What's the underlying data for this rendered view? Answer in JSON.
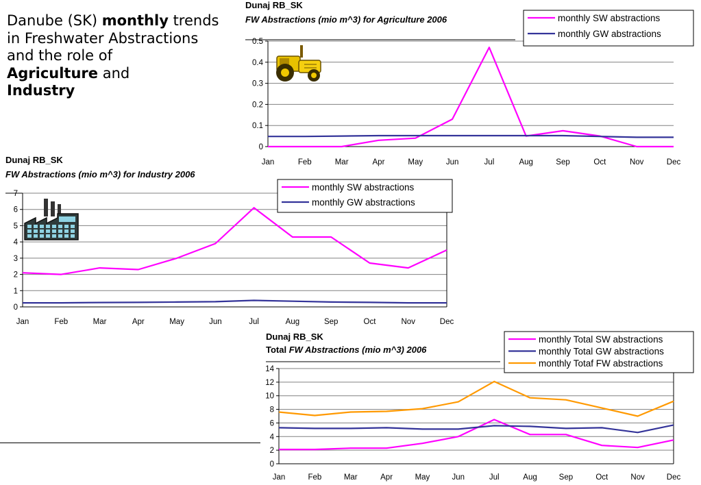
{
  "slide": {
    "title_parts": [
      {
        "text": "Danube (SK) ",
        "bold": false
      },
      {
        "text": "monthly",
        "bold": true
      },
      {
        "text": " trends in Freshwater Abstractions",
        "bold": false
      },
      {
        "br": true
      },
      {
        "text": "and the role of ",
        "bold": false
      },
      {
        "br": true
      },
      {
        "text": "Agriculture",
        "bold": true
      },
      {
        "text": " and ",
        "bold": false
      },
      {
        "br": true
      },
      {
        "text": "Industry",
        "bold": true
      }
    ]
  },
  "colors": {
    "sw": "#ff00ff",
    "gw": "#333399",
    "total": "#ff9900",
    "grid": "#808080",
    "axis": "#000000"
  },
  "chart_data": [
    {
      "id": "agriculture",
      "type": "line",
      "title": "Dunaj RB_SK",
      "subtitle": "FW Abstractions (mio m^3) for Agriculture 2006",
      "icon": "tractor-icon",
      "categories": [
        "Jan",
        "Feb",
        "Mar",
        "Apr",
        "May",
        "Jun",
        "Jul",
        "Aug",
        "Sep",
        "Oct",
        "Nov",
        "Dec"
      ],
      "ylim": [
        0,
        0.5
      ],
      "yticks": [
        "0",
        "0.1",
        "0.2",
        "0.3",
        "0.4",
        "0.5"
      ],
      "grid": true,
      "legend_position": "top-right",
      "series": [
        {
          "name": "monthly SW abstractions",
          "color": "#ff00ff",
          "values": [
            0,
            0,
            0,
            0.03,
            0.04,
            0.13,
            0.47,
            0.05,
            0.075,
            0.05,
            0,
            0
          ]
        },
        {
          "name": "monthly GW abstractions",
          "color": "#333399",
          "values": [
            0.048,
            0.048,
            0.05,
            0.052,
            0.052,
            0.052,
            0.052,
            0.052,
            0.052,
            0.048,
            0.044,
            0.044
          ]
        }
      ]
    },
    {
      "id": "industry",
      "type": "line",
      "title": "Dunaj RB_SK",
      "subtitle": "FW Abstractions (mio m^3)  for Industry 2006",
      "icon": "factory-icon",
      "categories": [
        "Jan",
        "Feb",
        "Mar",
        "Apr",
        "May",
        "Jun",
        "Jul",
        "Aug",
        "Sep",
        "Oct",
        "Nov",
        "Dec"
      ],
      "ylim": [
        0,
        7
      ],
      "yticks": [
        "0",
        "1",
        "2",
        "3",
        "4",
        "5",
        "6",
        "7"
      ],
      "grid": true,
      "legend_position": "top-right",
      "series": [
        {
          "name": "monthly SW abstractions",
          "color": "#ff00ff",
          "values": [
            2.1,
            2.0,
            2.4,
            2.3,
            3.0,
            3.9,
            6.1,
            4.3,
            4.3,
            2.7,
            2.4,
            3.5
          ]
        },
        {
          "name": "monthly GW abstractions",
          "color": "#333399",
          "values": [
            0.25,
            0.25,
            0.27,
            0.28,
            0.3,
            0.32,
            0.4,
            0.35,
            0.3,
            0.28,
            0.25,
            0.25
          ]
        }
      ]
    },
    {
      "id": "total",
      "type": "line",
      "title": "Dunaj RB_SK",
      "subtitle_prefix": "Total ",
      "subtitle": "FW Abstractions (mio m^3) 2006",
      "categories": [
        "Jan",
        "Feb",
        "Mar",
        "Apr",
        "May",
        "Jun",
        "Jul",
        "Aug",
        "Sep",
        "Oct",
        "Nov",
        "Dec"
      ],
      "ylim": [
        0,
        14
      ],
      "yticks": [
        "0",
        "2",
        "4",
        "6",
        "8",
        "10",
        "12",
        "14"
      ],
      "grid": true,
      "legend_position": "top-right",
      "series": [
        {
          "name": "monthly Total SW abstractions",
          "color": "#ff00ff",
          "values": [
            2.1,
            2.1,
            2.3,
            2.3,
            3.0,
            4.0,
            6.5,
            4.3,
            4.3,
            2.7,
            2.4,
            3.5
          ]
        },
        {
          "name": "monthly Total GW abstractions",
          "color": "#333399",
          "values": [
            5.3,
            5.2,
            5.2,
            5.3,
            5.1,
            5.1,
            5.6,
            5.5,
            5.2,
            5.3,
            4.6,
            5.7
          ]
        },
        {
          "name": "monthly Totaf FW abstractions",
          "color": "#ff9900",
          "values": [
            7.6,
            7.1,
            7.6,
            7.7,
            8.1,
            9.1,
            12.1,
            9.7,
            9.4,
            8.2,
            7.0,
            9.2
          ]
        }
      ]
    }
  ]
}
